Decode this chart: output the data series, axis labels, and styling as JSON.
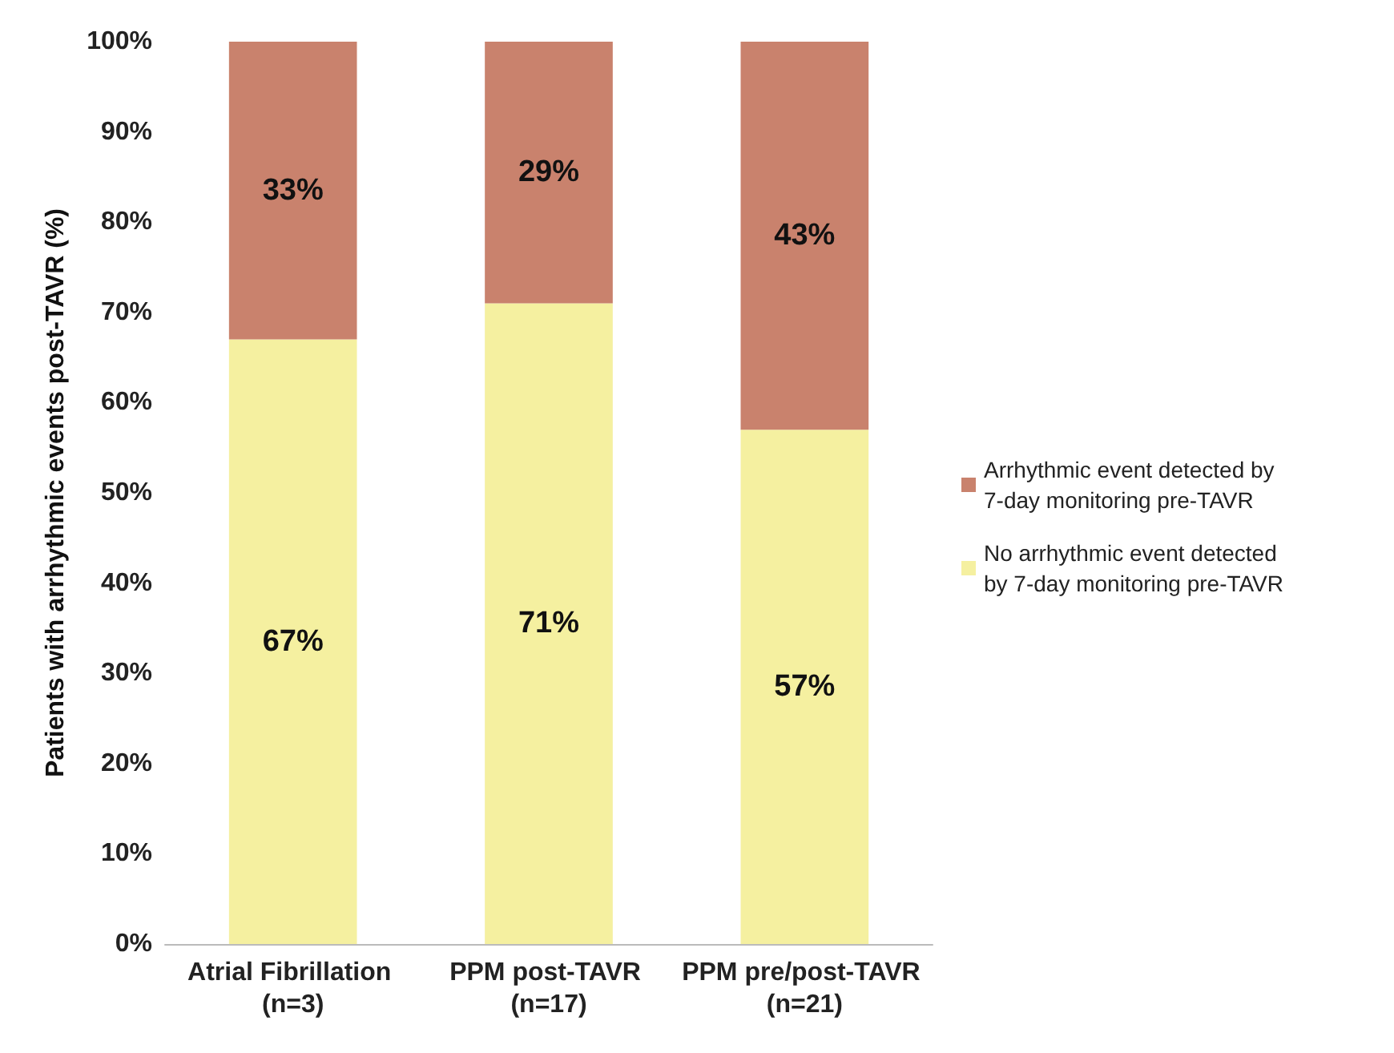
{
  "chart_data": {
    "type": "bar",
    "stacked": true,
    "ylabel": "Patients with arrhythmic events post-TAVR (%)",
    "categories": [
      "Atrial Fibrillation (n=3)",
      "PPM post-TAVR (n=17)",
      "PPM pre/post-TAVR (n=21)"
    ],
    "series": [
      {
        "name": "No arrhythmic event detected by 7-day monitoring pre-TAVR",
        "color": "#f5f0a0",
        "values": [
          67,
          71,
          57
        ],
        "value_labels": [
          "67%",
          "71%",
          "57%"
        ]
      },
      {
        "name": "Arrhythmic event detected by 7-day monitoring pre-TAVR",
        "color": "#c9826d",
        "values": [
          33,
          29,
          43
        ],
        "value_labels": [
          "33%",
          "29%",
          "43%"
        ]
      }
    ],
    "ylim": [
      0,
      100
    ],
    "yticks": [
      {
        "value": 0,
        "label": "0%"
      },
      {
        "value": 10,
        "label": "10%"
      },
      {
        "value": 20,
        "label": "20%"
      },
      {
        "value": 30,
        "label": "30%"
      },
      {
        "value": 40,
        "label": "40%"
      },
      {
        "value": 50,
        "label": "50%"
      },
      {
        "value": 60,
        "label": "60%"
      },
      {
        "value": 70,
        "label": "70%"
      },
      {
        "value": 80,
        "label": "80%"
      },
      {
        "value": 90,
        "label": "90%"
      },
      {
        "value": 100,
        "label": "100%"
      }
    ],
    "grid": false,
    "legend": "right"
  }
}
